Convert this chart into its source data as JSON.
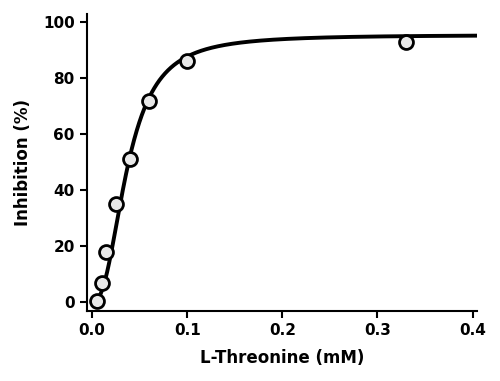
{
  "scatter_x": [
    0.005,
    0.01,
    0.015,
    0.025,
    0.04,
    0.06,
    0.1,
    0.33
  ],
  "scatter_y": [
    0.5,
    7.0,
    18.0,
    35.0,
    51.0,
    72.0,
    86.0,
    93.0
  ],
  "hill_K05": 0.037,
  "hill_nH": 2.44,
  "hill_Imax": 95.5,
  "xlim": [
    -0.005,
    0.405
  ],
  "ylim": [
    -3,
    103
  ],
  "xticks": [
    0.0,
    0.1,
    0.2,
    0.3,
    0.4
  ],
  "yticks": [
    0,
    20,
    40,
    60,
    80,
    100
  ],
  "xlabel": "L-Threonine (mM)",
  "ylabel": "Inhibition (%)",
  "line_color": "#000000",
  "marker_facecolor": "#e8e8e8",
  "marker_edge_color": "#000000",
  "marker_size": 10,
  "line_width": 2.8,
  "marker_edge_width": 2.0,
  "figsize": [
    5.0,
    3.81
  ],
  "dpi": 100
}
